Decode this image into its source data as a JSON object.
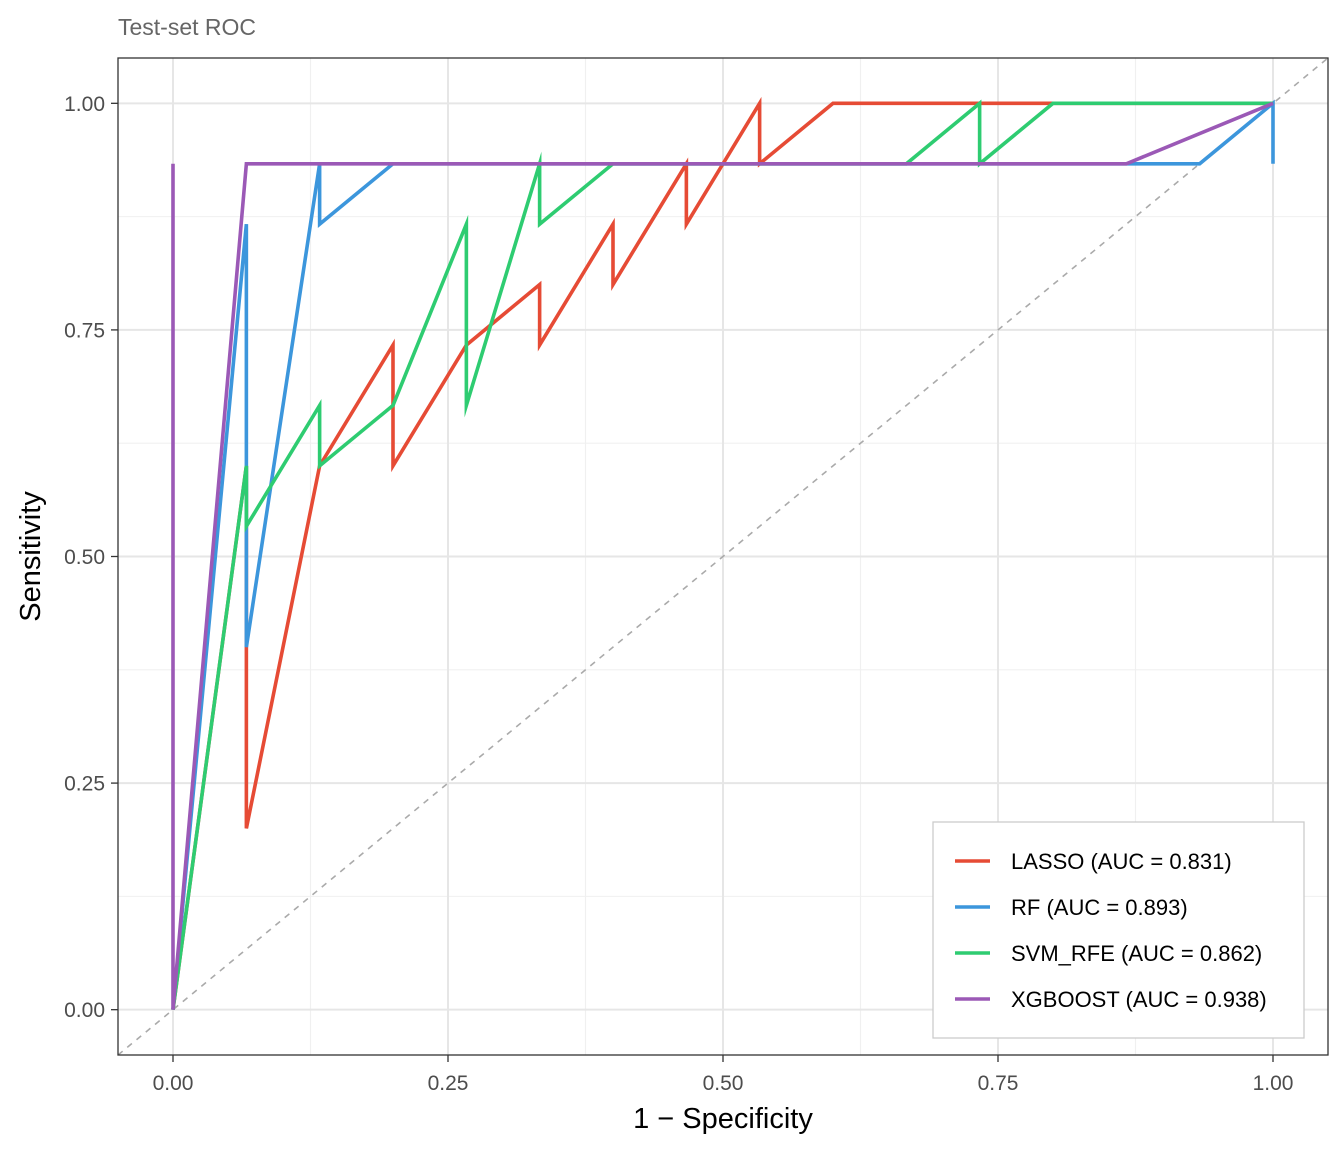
{
  "chart_data": {
    "type": "line",
    "subtitle": "Test-set ROC",
    "xlabel": "1 − Specificity",
    "ylabel": "Sensitivity",
    "xlim": [
      -0.05,
      1.05
    ],
    "ylim": [
      -0.05,
      1.05
    ],
    "x_ticks": [
      0,
      0.25,
      0.5,
      0.75,
      1
    ],
    "x_tick_labels": [
      "0.00",
      "0.25",
      "0.50",
      "0.75",
      "1.00"
    ],
    "y_ticks": [
      0,
      0.25,
      0.5,
      0.75,
      1
    ],
    "y_tick_labels": [
      "0.00",
      "0.25",
      "0.50",
      "0.75",
      "1.00"
    ],
    "grid": true,
    "legend_position": "bottom-right",
    "reference_line": {
      "style": "dashed",
      "color": "#aaaaaa",
      "from": [
        -0.05,
        -0.05
      ],
      "to": [
        1.05,
        1.05
      ]
    },
    "series": [
      {
        "name": "LASSO (AUC = 0.831)",
        "color": "#E64B35",
        "points": [
          [
            0,
            0
          ],
          [
            0.0667,
            0.6
          ],
          [
            0.0667,
            0.4
          ],
          [
            0.0667,
            0.2
          ],
          [
            0.1333,
            0.6
          ],
          [
            0.2,
            0.7333
          ],
          [
            0.2,
            0.6
          ],
          [
            0.2667,
            0.7333
          ],
          [
            0.3333,
            0.8
          ],
          [
            0.3333,
            0.7333
          ],
          [
            0.4,
            0.8667
          ],
          [
            0.4,
            0.8
          ],
          [
            0.4667,
            0.9333
          ],
          [
            0.4667,
            0.8667
          ],
          [
            0.5333,
            1
          ],
          [
            0.5333,
            0.9333
          ],
          [
            0.6,
            1
          ],
          [
            1,
            1
          ]
        ]
      },
      {
        "name": "RF (AUC = 0.893)",
        "color": "#3C96DC",
        "points": [
          [
            0,
            0
          ],
          [
            0.0667,
            0.8667
          ],
          [
            0.0667,
            0.4
          ],
          [
            0.1333,
            0.9333
          ],
          [
            0.1333,
            0.8667
          ],
          [
            0.2,
            0.9333
          ],
          [
            0.9333,
            0.9333
          ],
          [
            1,
            1
          ],
          [
            1,
            0.9333
          ]
        ]
      },
      {
        "name": "SVM_RFE (AUC = 0.862)",
        "color": "#2ECC71",
        "points": [
          [
            0,
            0
          ],
          [
            0.0667,
            0.6
          ],
          [
            0.0667,
            0.5333
          ],
          [
            0.1333,
            0.6667
          ],
          [
            0.1333,
            0.6
          ],
          [
            0.2,
            0.6667
          ],
          [
            0.2667,
            0.8667
          ],
          [
            0.2667,
            0.6667
          ],
          [
            0.3333,
            0.9333
          ],
          [
            0.3333,
            0.8667
          ],
          [
            0.4,
            0.9333
          ],
          [
            0.6667,
            0.9333
          ],
          [
            0.7333,
            1
          ],
          [
            0.7333,
            0.9333
          ],
          [
            0.8,
            1
          ],
          [
            1,
            1
          ]
        ]
      },
      {
        "name": "XGBOOST (AUC = 0.938)",
        "color": "#9B59B6",
        "points": [
          [
            0,
            0.9333
          ],
          [
            0,
            0
          ],
          [
            0.0667,
            0.9333
          ],
          [
            0.8667,
            0.9333
          ],
          [
            1,
            1
          ]
        ]
      }
    ]
  }
}
